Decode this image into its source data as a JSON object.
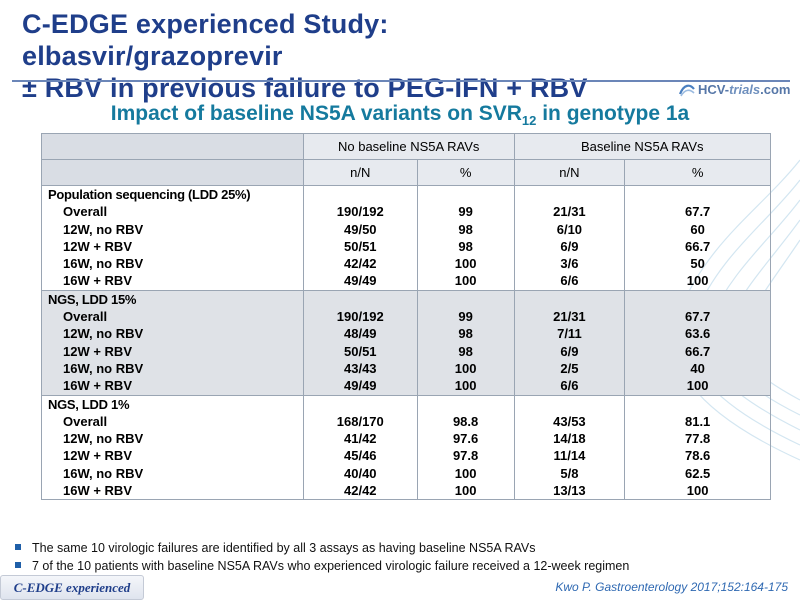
{
  "title_line1": "C-EDGE experienced Study: elbasvir/grazoprevir",
  "title_line2": "± RBV in previous failure to PEG-IFN + RBV",
  "logo": {
    "text_prefix": "HCV-",
    "text_em": "trials",
    "text_suffix": ".com"
  },
  "subtitle": {
    "text": "Impact of baseline NS5A variants on SVR",
    "sub": "12",
    "after": " in genotype 1a"
  },
  "table": {
    "col_groups": [
      "No baseline NS5A RAVs",
      "Baseline NS5A RAVs"
    ],
    "col_heads": [
      "n/N",
      "%",
      "n/N",
      "%"
    ],
    "groups": [
      {
        "heading": "Population sequencing (LDD 25%)",
        "rows": [
          {
            "label": "Overall",
            "v": [
              "190/192",
              "99",
              "21/31",
              "67.7"
            ]
          },
          {
            "label": "12W, no RBV",
            "v": [
              "49/50",
              "98",
              "6/10",
              "60"
            ]
          },
          {
            "label": "12W + RBV",
            "v": [
              "50/51",
              "98",
              "6/9",
              "66.7"
            ]
          },
          {
            "label": "16W, no RBV",
            "v": [
              "42/42",
              "100",
              "3/6",
              "50"
            ]
          },
          {
            "label": "16W + RBV",
            "v": [
              "49/49",
              "100",
              "6/6",
              "100"
            ]
          }
        ]
      },
      {
        "heading": "NGS, LDD 15%",
        "rows": [
          {
            "label": "Overall",
            "v": [
              "190/192",
              "99",
              "21/31",
              "67.7"
            ]
          },
          {
            "label": "12W, no RBV",
            "v": [
              "48/49",
              "98",
              "7/11",
              "63.6"
            ]
          },
          {
            "label": "12W + RBV",
            "v": [
              "50/51",
              "98",
              "6/9",
              "66.7"
            ]
          },
          {
            "label": "16W, no RBV",
            "v": [
              "43/43",
              "100",
              "2/5",
              "40"
            ]
          },
          {
            "label": "16W + RBV",
            "v": [
              "49/49",
              "100",
              "6/6",
              "100"
            ]
          }
        ]
      },
      {
        "heading": "NGS, LDD 1%",
        "rows": [
          {
            "label": "Overall",
            "v": [
              "168/170",
              "98.8",
              "43/53",
              "81.1"
            ]
          },
          {
            "label": "12W, no RBV",
            "v": [
              "41/42",
              "97.6",
              "14/18",
              "77.8"
            ]
          },
          {
            "label": "12W + RBV",
            "v": [
              "45/46",
              "97.8",
              "11/14",
              "78.6"
            ]
          },
          {
            "label": "16W, no RBV",
            "v": [
              "40/40",
              "100",
              "5/8",
              "62.5"
            ]
          },
          {
            "label": "16W + RBV",
            "v": [
              "42/42",
              "100",
              "13/13",
              "100"
            ]
          }
        ]
      }
    ]
  },
  "bullets": [
    "The same 10 virologic failures are identified by all 3 assays as having baseline NS5A RAVs",
    "7 of the 10 patients with baseline NS5A RAVs who experienced virologic failure received a 12-week regimen"
  ],
  "footer_tag": "C-EDGE experienced",
  "reference": "Kwo P. Gastroenterology 2017;152:164-175"
}
